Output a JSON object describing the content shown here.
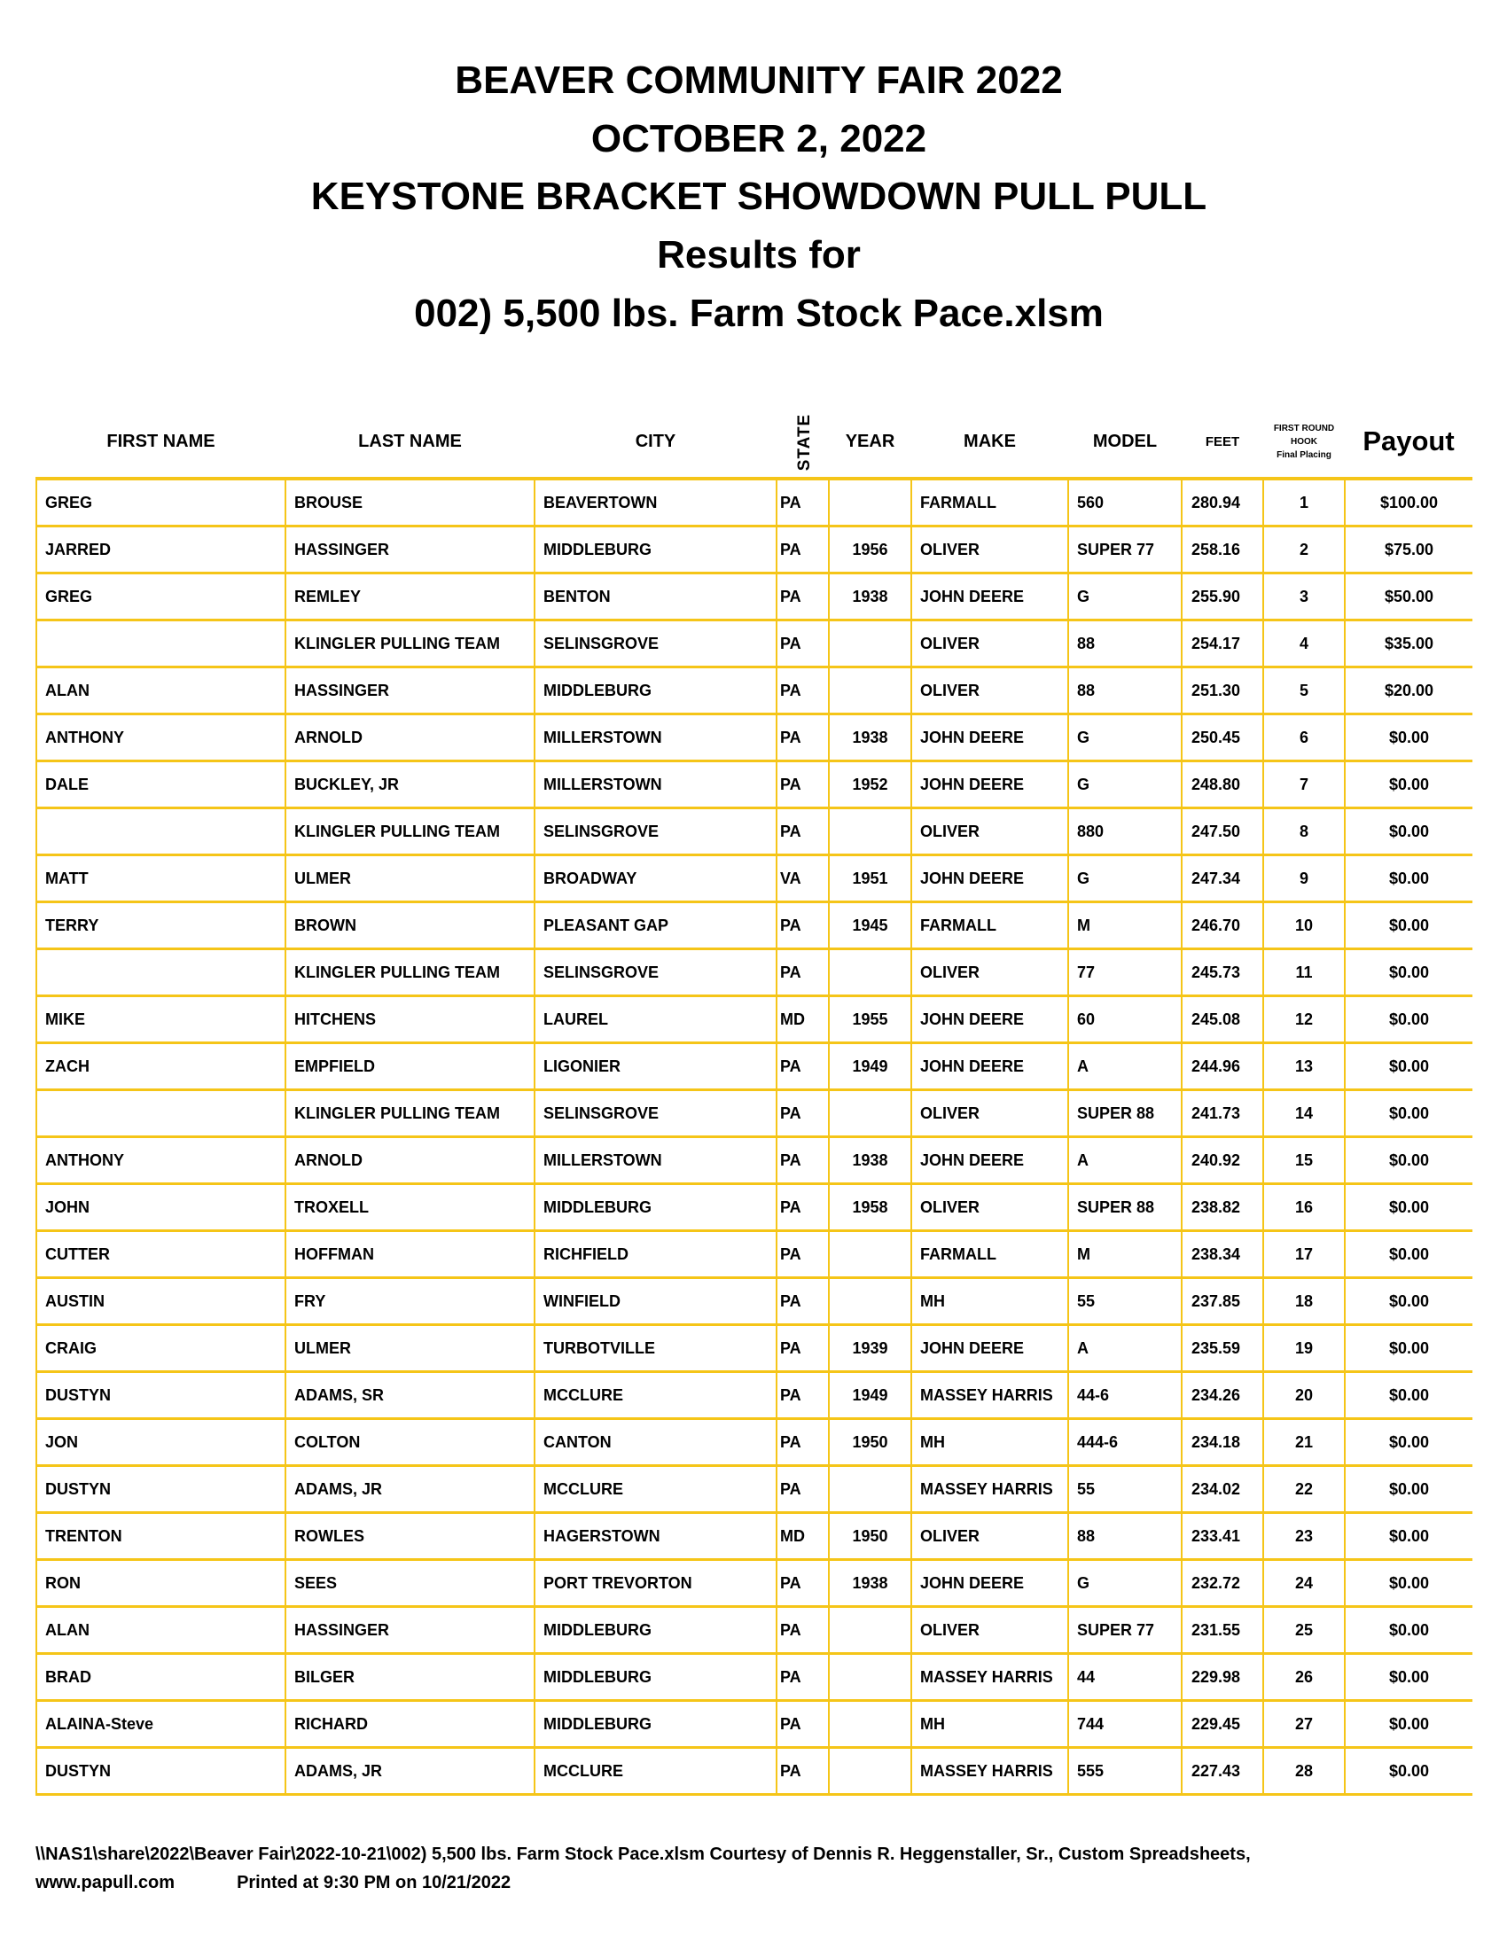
{
  "titles": [
    "BEAVER COMMUNITY FAIR 2022",
    "OCTOBER 2, 2022",
    "KEYSTONE BRACKET SHOWDOWN PULL PULL",
    "Results for",
    "002) 5,500 lbs. Farm Stock Pace.xlsm"
  ],
  "headers": {
    "first": "FIRST NAME",
    "last": "LAST NAME",
    "city": "CITY",
    "state": "STATE",
    "year": "YEAR",
    "make": "MAKE",
    "model": "MODEL",
    "feet": "FEET",
    "hook1": "FIRST ROUND",
    "hook2": "HOOK",
    "hook3": "Final Placing",
    "payout": "Payout"
  },
  "rows": [
    [
      "GREG",
      "BROUSE",
      "BEAVERTOWN",
      "PA",
      "",
      "FARMALL",
      "560",
      "280.94",
      "1",
      "$100.00"
    ],
    [
      "JARRED",
      "HASSINGER",
      "MIDDLEBURG",
      "PA",
      "1956",
      "OLIVER",
      "SUPER 77",
      "258.16",
      "2",
      "$75.00"
    ],
    [
      "GREG",
      "REMLEY",
      "BENTON",
      "PA",
      "1938",
      "JOHN DEERE",
      "G",
      "255.90",
      "3",
      "$50.00"
    ],
    [
      "",
      "KLINGLER PULLING TEAM",
      "SELINSGROVE",
      "PA",
      "",
      "OLIVER",
      "88",
      "254.17",
      "4",
      "$35.00"
    ],
    [
      "ALAN",
      "HASSINGER",
      "MIDDLEBURG",
      "PA",
      "",
      "OLIVER",
      "88",
      "251.30",
      "5",
      "$20.00"
    ],
    [
      "ANTHONY",
      "ARNOLD",
      "MILLERSTOWN",
      "PA",
      "1938",
      "JOHN DEERE",
      "G",
      "250.45",
      "6",
      "$0.00"
    ],
    [
      "DALE",
      "BUCKLEY, JR",
      "MILLERSTOWN",
      "PA",
      "1952",
      "JOHN DEERE",
      "G",
      "248.80",
      "7",
      "$0.00"
    ],
    [
      "",
      "KLINGLER PULLING TEAM",
      "SELINSGROVE",
      "PA",
      "",
      "OLIVER",
      "880",
      "247.50",
      "8",
      "$0.00"
    ],
    [
      "MATT",
      "ULMER",
      "BROADWAY",
      "VA",
      "1951",
      "JOHN DEERE",
      "G",
      "247.34",
      "9",
      "$0.00"
    ],
    [
      "TERRY",
      "BROWN",
      "PLEASANT GAP",
      "PA",
      "1945",
      "FARMALL",
      "M",
      "246.70",
      "10",
      "$0.00"
    ],
    [
      "",
      "KLINGLER PULLING TEAM",
      "SELINSGROVE",
      "PA",
      "",
      "OLIVER",
      "77",
      "245.73",
      "11",
      "$0.00"
    ],
    [
      "MIKE",
      "HITCHENS",
      "LAUREL",
      "MD",
      "1955",
      "JOHN DEERE",
      "60",
      "245.08",
      "12",
      "$0.00"
    ],
    [
      "ZACH",
      "EMPFIELD",
      "LIGONIER",
      "PA",
      "1949",
      "JOHN DEERE",
      "A",
      "244.96",
      "13",
      "$0.00"
    ],
    [
      "",
      "KLINGLER PULLING TEAM",
      "SELINSGROVE",
      "PA",
      "",
      "OLIVER",
      "SUPER 88",
      "241.73",
      "14",
      "$0.00"
    ],
    [
      "ANTHONY",
      "ARNOLD",
      "MILLERSTOWN",
      "PA",
      "1938",
      "JOHN DEERE",
      "A",
      "240.92",
      "15",
      "$0.00"
    ],
    [
      "JOHN",
      "TROXELL",
      "MIDDLEBURG",
      "PA",
      "1958",
      "OLIVER",
      "SUPER 88",
      "238.82",
      "16",
      "$0.00"
    ],
    [
      "CUTTER",
      "HOFFMAN",
      "RICHFIELD",
      "PA",
      "",
      "FARMALL",
      "M",
      "238.34",
      "17",
      "$0.00"
    ],
    [
      "AUSTIN",
      "FRY",
      "WINFIELD",
      "PA",
      "",
      "MH",
      "55",
      "237.85",
      "18",
      "$0.00"
    ],
    [
      "CRAIG",
      "ULMER",
      "TURBOTVILLE",
      "PA",
      "1939",
      "JOHN DEERE",
      "A",
      "235.59",
      "19",
      "$0.00"
    ],
    [
      "DUSTYN",
      "ADAMS, SR",
      "MCCLURE",
      "PA",
      "1949",
      "MASSEY HARRIS",
      "44-6",
      "234.26",
      "20",
      "$0.00"
    ],
    [
      "JON",
      "COLTON",
      "CANTON",
      "PA",
      "1950",
      "MH",
      "444-6",
      "234.18",
      "21",
      "$0.00"
    ],
    [
      "DUSTYN",
      "ADAMS, JR",
      "MCCLURE",
      "PA",
      "",
      "MASSEY HARRIS",
      "55",
      "234.02",
      "22",
      "$0.00"
    ],
    [
      "TRENTON",
      "ROWLES",
      "HAGERSTOWN",
      "MD",
      "1950",
      "OLIVER",
      "88",
      "233.41",
      "23",
      "$0.00"
    ],
    [
      "RON",
      "SEES",
      "PORT TREVORTON",
      "PA",
      "1938",
      "JOHN DEERE",
      "G",
      "232.72",
      "24",
      "$0.00"
    ],
    [
      "ALAN",
      "HASSINGER",
      "MIDDLEBURG",
      "PA",
      "",
      "OLIVER",
      "SUPER 77",
      "231.55",
      "25",
      "$0.00"
    ],
    [
      "BRAD",
      "BILGER",
      "MIDDLEBURG",
      "PA",
      "",
      "MASSEY HARRIS",
      "44",
      "229.98",
      "26",
      "$0.00"
    ],
    [
      "ALAINA-Steve",
      "RICHARD",
      "MIDDLEBURG",
      "PA",
      "",
      "MH",
      "744",
      "229.45",
      "27",
      "$0.00"
    ],
    [
      "DUSTYN",
      "ADAMS, JR",
      "MCCLURE",
      "PA",
      "",
      "MASSEY HARRIS",
      "555",
      "227.43",
      "28",
      "$0.00"
    ]
  ],
  "footer": {
    "path": "\\\\NAS1\\share\\2022\\Beaver Fair\\2022-10-21\\002) 5,500 lbs. Farm Stock Pace.xlsm  Courtesy of Dennis R. Heggenstaller, Sr., Custom Spreadsheets, www.papull.com",
    "printed": "Printed at 9:30 PM on 10/21/2022"
  },
  "colors": {
    "grid": "#F5C518"
  }
}
